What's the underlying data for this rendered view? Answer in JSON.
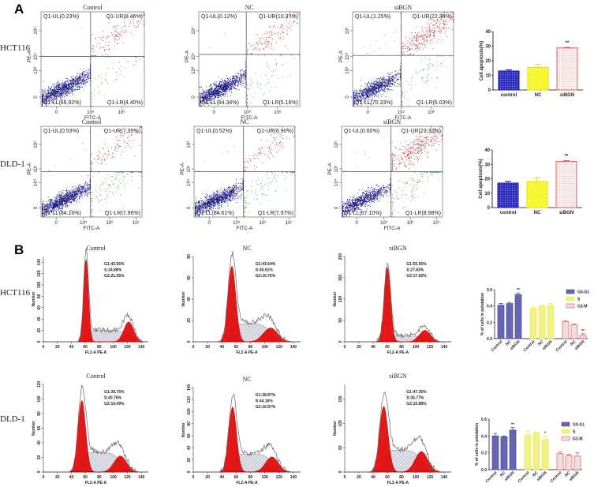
{
  "panel_labels": {
    "a": "A",
    "b": "B"
  },
  "row_labels": {
    "hct": "HCT116",
    "dld": "DLD-1"
  },
  "colors": {
    "ll": "#141480",
    "ur": "#b02020",
    "lr": "#3aa040",
    "ul": "#888888",
    "peak": "#e00000",
    "s_phase": "#c8c8d8"
  },
  "chart_data": [
    {
      "type": "scatter",
      "name": "flow-hct-control",
      "title": "Control",
      "xlabel": "FITC-A",
      "ylabel": "PE-A",
      "x_ticks": [
        "0",
        "10⁵",
        "10⁶"
      ],
      "y_ticks": [
        "0",
        "10³",
        "10⁴",
        "10⁵"
      ],
      "quadrants": {
        "ul": "Q1-UL(0.23%)",
        "ur": "Q1-UR(8.46%)",
        "ll": "Q1-LL(86.92%)",
        "lr": "Q1-LR(4.40%)"
      },
      "pct": {
        "ul": 0.23,
        "ur": 8.46,
        "ll": 86.92,
        "lr": 4.4
      }
    },
    {
      "type": "scatter",
      "name": "flow-hct-nc",
      "title": "NC",
      "xlabel": "FITC-A",
      "ylabel": "PE-A",
      "x_ticks": [
        "0",
        "10⁵",
        "10⁶"
      ],
      "y_ticks": [
        "0",
        "10³",
        "10⁴",
        "10⁵"
      ],
      "quadrants": {
        "ul": "Q1-UL(0.12%)",
        "ur": "Q1-UR(10.37%)",
        "ll": "Q1-LL(84.34%)",
        "lr": "Q1-LR(5.16%)"
      },
      "pct": {
        "ul": 0.12,
        "ur": 10.37,
        "ll": 84.34,
        "lr": 5.16
      }
    },
    {
      "type": "scatter",
      "name": "flow-hct-sibgn",
      "title": "siBGN",
      "xlabel": "FITC-A",
      "ylabel": "PE-A",
      "x_ticks": [
        "0",
        "10⁵",
        "10⁶"
      ],
      "y_ticks": [
        "0",
        "10³",
        "10⁴",
        "10⁵"
      ],
      "quadrants": {
        "ul": "Q1-UL(1.25%)",
        "ur": "Q1-UR(22.39%)",
        "ll": "Q1-LL(70.33%)",
        "lr": "Q1-LR(6.03%)"
      },
      "pct": {
        "ul": 1.25,
        "ur": 22.39,
        "ll": 70.33,
        "lr": 6.03
      }
    },
    {
      "type": "scatter",
      "name": "flow-dld-control",
      "title": "Control",
      "xlabel": "FITC-A",
      "ylabel": "PE-A",
      "x_ticks": [
        "0",
        "10⁵",
        "10⁶",
        "10⁷"
      ],
      "y_ticks": [
        "0",
        "10⁴",
        "10⁵",
        "10⁶"
      ],
      "quadrants": {
        "ul": "Q1-UL(0.53%)",
        "ur": "Q1-UR(7.35%)",
        "ll": "Q1-LL(84.16%)",
        "lr": "Q1-LR(7.96%)"
      },
      "pct": {
        "ul": 0.53,
        "ur": 7.35,
        "ll": 84.16,
        "lr": 7.96
      }
    },
    {
      "type": "scatter",
      "name": "flow-dld-nc",
      "title": "NC",
      "xlabel": "FITC-A",
      "ylabel": "PE-A",
      "x_ticks": [
        "0",
        "10⁵",
        "10⁶",
        "10⁷"
      ],
      "y_ticks": [
        "0",
        "10⁴",
        "10⁵",
        "10⁶"
      ],
      "quadrants": {
        "ul": "Q1-UL(0.52%)",
        "ur": "Q1-UR(6.90%)",
        "ll": "Q1-LL(84.61%)",
        "lr": "Q1-LR(7.97%)"
      },
      "pct": {
        "ul": 0.52,
        "ur": 6.9,
        "ll": 84.61,
        "lr": 7.97
      }
    },
    {
      "type": "scatter",
      "name": "flow-dld-sibgn",
      "title": "siBGN",
      "xlabel": "FITC-A",
      "ylabel": "PE-A",
      "x_ticks": [
        "0",
        "10⁵",
        "10⁶",
        "10⁷"
      ],
      "y_ticks": [
        "0",
        "10⁴",
        "10⁵",
        "10⁶"
      ],
      "quadrants": {
        "ul": "Q1-UL(0.60%)",
        "ur": "Q1-UR(23.32%)",
        "ll": "Q1-LL(67.10%)",
        "lr": "Q1-LR(8.98%)"
      },
      "pct": {
        "ul": 0.6,
        "ur": 23.32,
        "ll": 67.1,
        "lr": 8.98
      }
    },
    {
      "type": "bar",
      "name": "apoptosis-hct",
      "categories": [
        "control",
        "NC",
        "siBGN"
      ],
      "values": [
        13,
        15.5,
        28.8
      ],
      "errors": [
        0.8,
        2.0,
        0.4
      ],
      "ylabel": "Cell apoptosis(%)",
      "ylim": [
        0,
        40
      ],
      "y_ticks": [
        "0",
        "10",
        "20",
        "30",
        "40"
      ],
      "annotations": [
        "",
        "",
        "**"
      ]
    },
    {
      "type": "bar",
      "name": "apoptosis-dld",
      "categories": [
        "control",
        "NC",
        "siBGN"
      ],
      "values": [
        17,
        18,
        32
      ],
      "errors": [
        1.2,
        2.8,
        0.6
      ],
      "ylabel": "Cell apoptosis(%)",
      "ylim": [
        0,
        40
      ],
      "y_ticks": [
        "0",
        "10",
        "20",
        "30",
        "40"
      ],
      "annotations": [
        "",
        "",
        "**"
      ]
    },
    {
      "type": "histogram",
      "name": "cycle-hct-control",
      "title": "Control",
      "xlabel": "FL2-A PE-A",
      "ylabel": "Number",
      "stats": [
        "G1:43.56%",
        "S:34.88%",
        "G2:21.55%"
      ],
      "x_ticks": [
        "0",
        "20",
        "40",
        "60",
        "80",
        "100",
        "120",
        "140"
      ],
      "y_ticks": [
        "0",
        "20",
        "40",
        "60",
        "80",
        "100",
        "120",
        "140"
      ],
      "ymax": 150,
      "g1": {
        "pos": 61,
        "height": 145,
        "sd": 3.5
      },
      "g2": {
        "pos": 122,
        "height": 35,
        "sd": 7
      },
      "s_height": 20
    },
    {
      "type": "histogram",
      "name": "cycle-hct-nc",
      "title": "NC",
      "xlabel": "FL2-A PE-A",
      "ylabel": "Number",
      "stats": [
        "G1:43.64%",
        "S:40.61%",
        "G2:15.75%"
      ],
      "x_ticks": [
        "0",
        "20",
        "40",
        "60",
        "80",
        "100",
        "120",
        "140"
      ],
      "y_ticks": [
        "0",
        "20",
        "40",
        "60",
        "80"
      ],
      "ymax": 80,
      "g1": {
        "pos": 54,
        "height": 71,
        "sd": 5.5
      },
      "g2": {
        "pos": 108,
        "height": 13,
        "sd": 10
      },
      "s_height": 17
    },
    {
      "type": "histogram",
      "name": "cycle-hct-sibgn",
      "title": "siBGN",
      "xlabel": "FL2-A PE-A",
      "ylabel": "Number",
      "stats": [
        "G1:55.55%",
        "S:27.83%",
        "G2:17.62%"
      ],
      "x_ticks": [
        "0",
        "20",
        "40",
        "60",
        "80",
        "100",
        "120",
        "140"
      ],
      "y_ticks": [
        "0",
        "50",
        "100",
        "150",
        "200"
      ],
      "ymax": 200,
      "g1": {
        "pos": 60,
        "height": 175,
        "sd": 4.5
      },
      "g2": {
        "pos": 113,
        "height": 27,
        "sd": 8
      },
      "s_height": 14
    },
    {
      "type": "histogram",
      "name": "cycle-dld-control",
      "title": "Control",
      "xlabel": "FL2-A PE-A",
      "ylabel": "Number",
      "stats": [
        "G1:39.75%",
        "S:40.76%",
        "G2:19.49%"
      ],
      "x_ticks": [
        "0",
        "20",
        "40",
        "60",
        "80",
        "100",
        "120",
        "140"
      ],
      "y_ticks": [
        "0",
        "20",
        "40",
        "60",
        "80",
        "100",
        "120"
      ],
      "ymax": 120,
      "g1": {
        "pos": 55,
        "height": 98,
        "sd": 5.5
      },
      "g2": {
        "pos": 110,
        "height": 22,
        "sd": 9
      },
      "s_height": 27
    },
    {
      "type": "histogram",
      "name": "cycle-dld-nc",
      "title": "NC",
      "xlabel": "FL2-A PE-A",
      "ylabel": "Number",
      "stats": [
        "G1:38.87%",
        "S:44.16%",
        "G2:16.97%"
      ],
      "x_ticks": [
        "0",
        "20",
        "40",
        "60",
        "80",
        "100",
        "120",
        "140"
      ],
      "y_ticks": [
        "0",
        "20",
        "40",
        "60",
        "80",
        "100",
        "120",
        "140"
      ],
      "ymax": 140,
      "g1": {
        "pos": 55,
        "height": 108,
        "sd": 5.5
      },
      "g2": {
        "pos": 110,
        "height": 25,
        "sd": 9
      },
      "s_height": 30
    },
    {
      "type": "histogram",
      "name": "cycle-dld-sibgn",
      "title": "siBGN",
      "xlabel": "FL2-A PE-A",
      "ylabel": "Number",
      "stats": [
        "G1:47.35%",
        "S:36.77%",
        "G2:15.88%"
      ],
      "x_ticks": [
        "0",
        "20",
        "40",
        "60",
        "80",
        "100",
        "120",
        "140"
      ],
      "y_ticks": [
        "0",
        "50",
        "100",
        "150"
      ],
      "ymax": 180,
      "g1": {
        "pos": 55,
        "height": 135,
        "sd": 6
      },
      "g2": {
        "pos": 108,
        "height": 42,
        "sd": 9
      },
      "s_height": 45
    },
    {
      "type": "bar",
      "name": "cycle-summary-hct",
      "ylabel": "% of cells in polulation",
      "ylim": [
        0,
        0.6
      ],
      "y_ticks": [
        "0.0",
        "0.2",
        "0.4",
        "0.6"
      ],
      "categories": [
        "Control",
        "NC",
        "siBGN"
      ],
      "series": [
        {
          "name": "G0-G1",
          "values": [
            0.41,
            0.43,
            0.54
          ],
          "errors": [
            0.02,
            0.015,
            0.02
          ],
          "annotations": [
            "",
            "",
            "**"
          ]
        },
        {
          "name": "S",
          "values": [
            0.37,
            0.4,
            0.41
          ],
          "errors": [
            0.02,
            0.01,
            0.02
          ],
          "annotations": [
            "",
            "",
            ""
          ]
        },
        {
          "name": "G2-M",
          "values": [
            0.21,
            0.17,
            0.04
          ],
          "errors": [
            0.01,
            0.01,
            0.02
          ],
          "annotations": [
            "",
            "",
            "**"
          ]
        }
      ]
    },
    {
      "type": "bar",
      "name": "cycle-summary-dld",
      "ylabel": "% of cells in polulation",
      "ylim": [
        0,
        0.6
      ],
      "y_ticks": [
        "0.0",
        "0.2",
        "0.4",
        "0.6"
      ],
      "categories": [
        "Control",
        "NC",
        "siBGN"
      ],
      "series": [
        {
          "name": "G0-G1",
          "values": [
            0.4,
            0.39,
            0.47
          ],
          "errors": [
            0.03,
            0.01,
            0.03
          ],
          "annotations": [
            "",
            "",
            "**"
          ]
        },
        {
          "name": "S",
          "values": [
            0.41,
            0.44,
            0.36
          ],
          "errors": [
            0.05,
            0.005,
            0.04
          ],
          "annotations": [
            "",
            "",
            "*"
          ]
        },
        {
          "name": "G2-M",
          "values": [
            0.19,
            0.17,
            0.16
          ],
          "errors": [
            0.02,
            0.01,
            0.04
          ],
          "annotations": [
            "",
            "",
            ""
          ]
        }
      ]
    }
  ]
}
